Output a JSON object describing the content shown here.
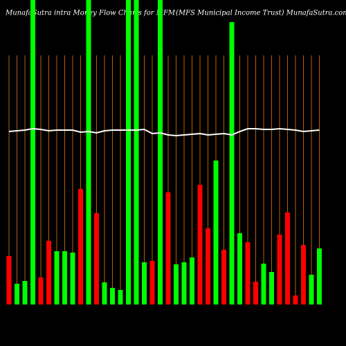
{
  "chart_data": {
    "type": "bar",
    "title": "MunafaSutra intra Money Flow Charts for MFM",
    "subtitle": "(MFS Municipal Income Trust) MunafaSutra.com",
    "ylim": [
      0,
      440
    ],
    "grid": true,
    "grid_color": "#b8600a",
    "values": [
      70,
      30,
      34,
      440,
      39,
      92,
      77,
      77,
      75,
      167,
      440,
      132,
      32,
      24,
      21,
      440,
      440,
      61,
      63,
      440,
      162,
      58,
      61,
      68,
      173,
      110,
      208,
      79,
      408,
      103,
      90,
      33,
      59,
      47,
      101,
      133,
      13,
      86,
      43,
      81
    ],
    "bar_colors": [
      "#ff0000",
      "#00ff00",
      "#00ff00",
      "#00ff00",
      "#ff0000",
      "#ff0000",
      "#00ff00",
      "#00ff00",
      "#00ff00",
      "#ff0000",
      "#00ff00",
      "#ff0000",
      "#00ff00",
      "#00ff00",
      "#00ff00",
      "#00ff00",
      "#00ff00",
      "#00ff00",
      "#ff0000",
      "#00ff00",
      "#ff0000",
      "#00ff00",
      "#00ff00",
      "#00ff00",
      "#ff0000",
      "#ff0000",
      "#00ff00",
      "#ff0000",
      "#00ff00",
      "#00ff00",
      "#ff0000",
      "#ff0000",
      "#00ff00",
      "#00ff00",
      "#ff0000",
      "#ff0000",
      "#ff0000",
      "#ff0000",
      "#00ff00",
      "#00ff00"
    ],
    "line": {
      "color": "#ffffff",
      "values": [
        250,
        251,
        252,
        254,
        253,
        251,
        252,
        252,
        252,
        249,
        250,
        248,
        251,
        252,
        252,
        252,
        252,
        253,
        247,
        248,
        245,
        244,
        245,
        246,
        247,
        245,
        246,
        247,
        245,
        250,
        254,
        254,
        253,
        253,
        254,
        253,
        252,
        250,
        251,
        252
      ]
    }
  }
}
